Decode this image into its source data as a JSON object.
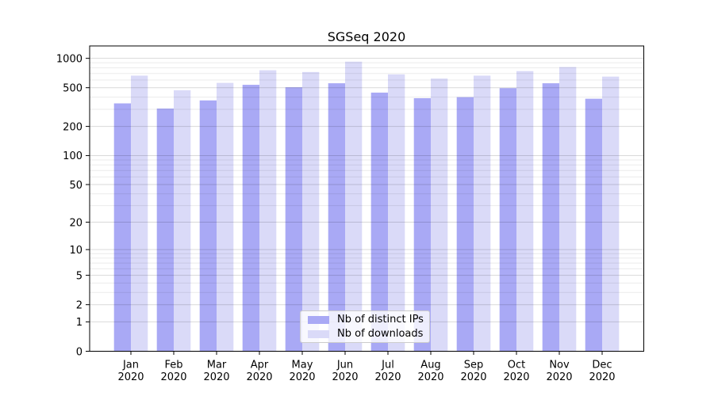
{
  "chart_data": {
    "type": "bar",
    "title": "SGSeq 2020",
    "categories": [
      "Jan",
      "Feb",
      "Mar",
      "Apr",
      "May",
      "Jun",
      "Jul",
      "Aug",
      "Sep",
      "Oct",
      "Nov",
      "Dec"
    ],
    "category_year": "2020",
    "series": [
      {
        "name": "Nb of distinct IPs",
        "color": "#a9a9f5",
        "values": [
          345,
          305,
          370,
          535,
          505,
          555,
          445,
          390,
          400,
          495,
          555,
          385
        ]
      },
      {
        "name": "Nb of downloads",
        "color": "#dadaf8",
        "values": [
          665,
          470,
          560,
          755,
          725,
          925,
          685,
          620,
          665,
          740,
          815,
          650
        ]
      }
    ],
    "yscale": "log1p",
    "yticks": [
      0,
      1,
      2,
      5,
      10,
      20,
      50,
      100,
      200,
      500,
      1000
    ],
    "ylim": [
      0,
      1340
    ],
    "grid": true,
    "legend_position": "lower center",
    "colors": {
      "axis": "#000000",
      "grid_major": "rgba(0,0,0,0.15)",
      "grid_minor": "rgba(0,0,0,0.08)",
      "legend_border": "#cccccc",
      "legend_background": "rgba(255,255,255,0.8)"
    }
  }
}
